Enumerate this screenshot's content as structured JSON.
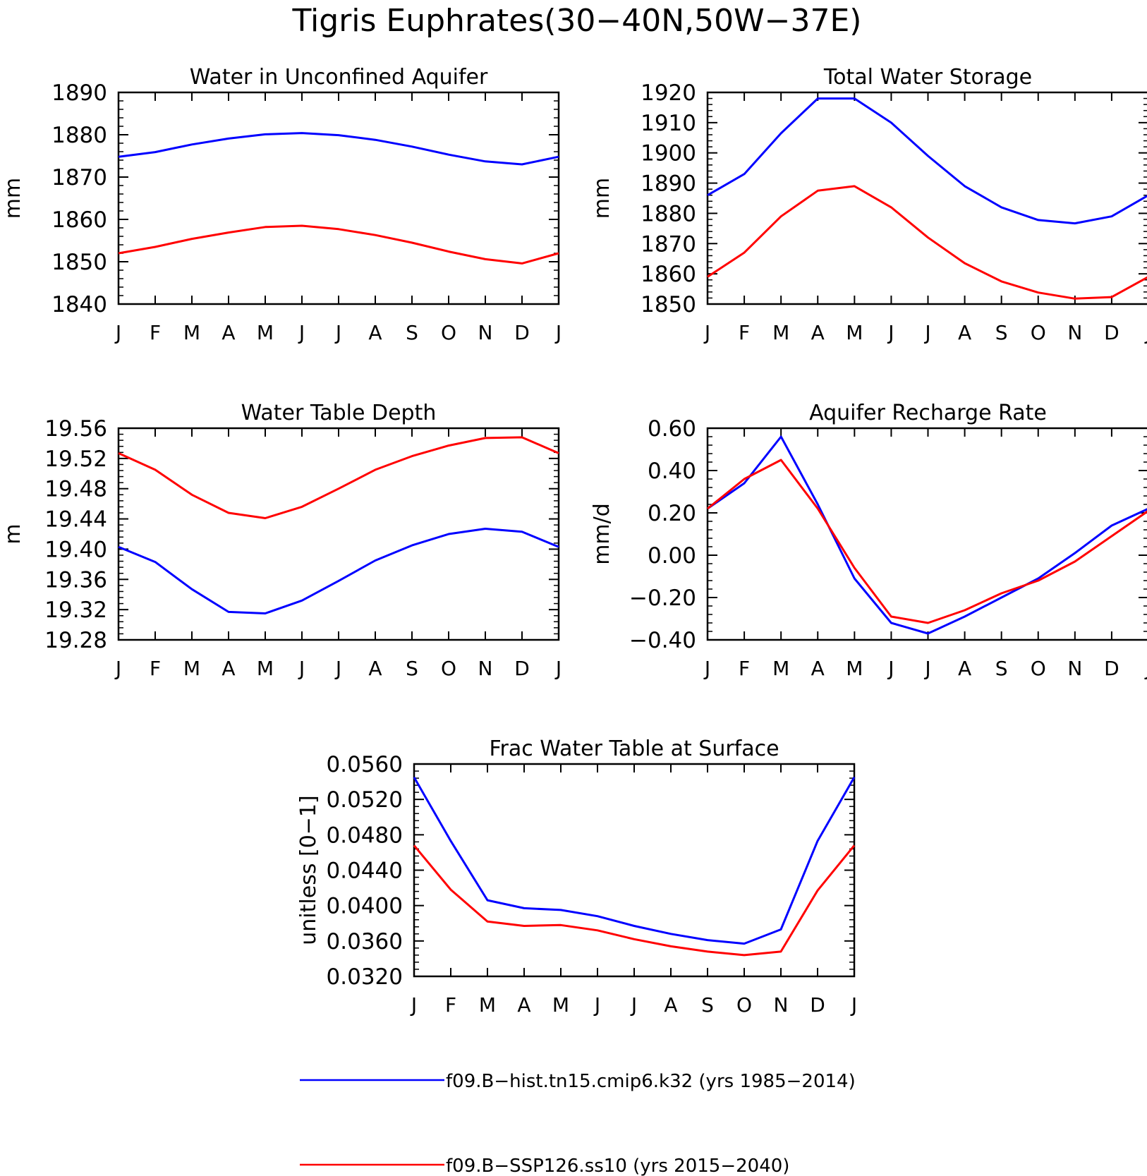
{
  "figure": {
    "title": "Tigris Euphrates(30−40N,50W−37E)"
  },
  "colors": {
    "hist": "#0000ff",
    "ssp": "#ff0000",
    "axis": "#000000",
    "background": "#ffffff"
  },
  "legend": {
    "placement": "bottom-center",
    "entries": [
      {
        "label": "f09.B−hist.tn15.cmip6.k32 (yrs 1985−2014)",
        "color": "#0000ff"
      },
      {
        "label": "f09.B−SSP126.ss10 (yrs 2015−2040)",
        "color": "#ff0000"
      }
    ]
  },
  "chart_data": [
    {
      "type": "line",
      "title": "Water in Unconfined Aquifer",
      "xlabel": "",
      "ylabel": "mm",
      "categories": [
        "J",
        "F",
        "M",
        "A",
        "M",
        "J",
        "J",
        "A",
        "S",
        "O",
        "N",
        "D",
        "J"
      ],
      "ylim": [
        1840,
        1890
      ],
      "yticks": [
        "1840",
        "1850",
        "1860",
        "1870",
        "1880",
        "1890"
      ],
      "grid": false,
      "series": [
        {
          "name": "f09.B−hist.tn15.cmip6.k32 (yrs 1985−2014)",
          "color": "#0000ff",
          "values": [
            1874.8,
            1875.9,
            1877.7,
            1879.1,
            1880.1,
            1880.4,
            1879.9,
            1878.8,
            1877.2,
            1875.3,
            1873.7,
            1873.0,
            1874.8
          ]
        },
        {
          "name": "f09.B−SSP126.ss10 (yrs 2015−2040)",
          "color": "#ff0000",
          "values": [
            1852.0,
            1853.5,
            1855.4,
            1856.9,
            1858.2,
            1858.5,
            1857.7,
            1856.3,
            1854.5,
            1852.4,
            1850.6,
            1849.6,
            1852.0
          ]
        }
      ]
    },
    {
      "type": "line",
      "title": "Total Water Storage",
      "xlabel": "",
      "ylabel": "mm",
      "categories": [
        "J",
        "F",
        "M",
        "A",
        "M",
        "J",
        "J",
        "A",
        "S",
        "O",
        "N",
        "D",
        "J"
      ],
      "ylim": [
        1850,
        1920
      ],
      "yticks": [
        "1850",
        "1860",
        "1870",
        "1880",
        "1890",
        "1900",
        "1910",
        "1920"
      ],
      "grid": false,
      "series": [
        {
          "name": "f09.B−hist.tn15.cmip6.k32 (yrs 1985−2014)",
          "color": "#0000ff",
          "values": [
            1886.0,
            1893.0,
            1906.5,
            1918.0,
            1918.0,
            1910.0,
            1899.0,
            1889.0,
            1882.0,
            1877.8,
            1876.7,
            1879.0,
            1886.0
          ]
        },
        {
          "name": "f09.B−SSP126.ss10 (yrs 2015−2040)",
          "color": "#ff0000",
          "values": [
            1859.0,
            1867.0,
            1879.0,
            1887.5,
            1889.0,
            1882.0,
            1872.0,
            1863.5,
            1857.5,
            1853.8,
            1851.8,
            1852.3,
            1859.0
          ]
        }
      ]
    },
    {
      "type": "line",
      "title": "Water Table Depth",
      "xlabel": "",
      "ylabel": "m",
      "categories": [
        "J",
        "F",
        "M",
        "A",
        "M",
        "J",
        "J",
        "A",
        "S",
        "O",
        "N",
        "D",
        "J"
      ],
      "ylim": [
        19.28,
        19.56
      ],
      "yticks": [
        "19.28",
        "19.32",
        "19.36",
        "19.40",
        "19.44",
        "19.48",
        "19.52",
        "19.56"
      ],
      "grid": false,
      "series": [
        {
          "name": "f09.B−hist.tn15.cmip6.k32 (yrs 1985−2014)",
          "color": "#0000ff",
          "values": [
            19.403,
            19.383,
            19.347,
            19.317,
            19.315,
            19.332,
            19.358,
            19.385,
            19.405,
            19.42,
            19.427,
            19.423,
            19.403
          ]
        },
        {
          "name": "f09.B−SSP126.ss10 (yrs 2015−2040)",
          "color": "#ff0000",
          "values": [
            19.527,
            19.505,
            19.472,
            19.448,
            19.441,
            19.456,
            19.48,
            19.505,
            19.523,
            19.537,
            19.547,
            19.548,
            19.527
          ]
        }
      ]
    },
    {
      "type": "line",
      "title": "Aquifer Recharge Rate",
      "xlabel": "",
      "ylabel": "mm/d",
      "categories": [
        "J",
        "F",
        "M",
        "A",
        "M",
        "J",
        "J",
        "A",
        "S",
        "O",
        "N",
        "D",
        "J"
      ],
      "ylim": [
        -0.4,
        0.6
      ],
      "yticks": [
        "−0.40",
        "−0.20",
        "0.00",
        "0.20",
        "0.40",
        "0.60"
      ],
      "grid": false,
      "series": [
        {
          "name": "f09.B−hist.tn15.cmip6.k32 (yrs 1985−2014)",
          "color": "#0000ff",
          "values": [
            0.22,
            0.34,
            0.56,
            0.24,
            -0.11,
            -0.32,
            -0.37,
            -0.29,
            -0.2,
            -0.11,
            0.01,
            0.14,
            0.22
          ]
        },
        {
          "name": "f09.B−SSP126.ss10 (yrs 2015−2040)",
          "color": "#ff0000",
          "values": [
            0.22,
            0.36,
            0.45,
            0.22,
            -0.06,
            -0.29,
            -0.32,
            -0.26,
            -0.18,
            -0.12,
            -0.03,
            0.09,
            0.21
          ]
        }
      ]
    },
    {
      "type": "line",
      "title": "Frac Water Table at Surface",
      "xlabel": "",
      "ylabel": "unitless [0−1]",
      "categories": [
        "J",
        "F",
        "M",
        "A",
        "M",
        "J",
        "J",
        "A",
        "S",
        "O",
        "N",
        "D",
        "J"
      ],
      "ylim": [
        0.032,
        0.056
      ],
      "yticks": [
        "0.0320",
        "0.0360",
        "0.0400",
        "0.0440",
        "0.0480",
        "0.0520",
        "0.0560"
      ],
      "grid": false,
      "series": [
        {
          "name": "f09.B−hist.tn15.cmip6.k32 (yrs 1985−2014)",
          "color": "#0000ff",
          "values": [
            0.0545,
            0.0473,
            0.0406,
            0.0397,
            0.0395,
            0.0388,
            0.0377,
            0.0368,
            0.0361,
            0.0357,
            0.0373,
            0.0473,
            0.0545
          ]
        },
        {
          "name": "f09.B−SSP126.ss10 (yrs 2015−2040)",
          "color": "#ff0000",
          "values": [
            0.0468,
            0.0418,
            0.0382,
            0.0377,
            0.0378,
            0.0372,
            0.0362,
            0.0354,
            0.0348,
            0.0344,
            0.0348,
            0.0417,
            0.0468
          ]
        }
      ]
    }
  ]
}
